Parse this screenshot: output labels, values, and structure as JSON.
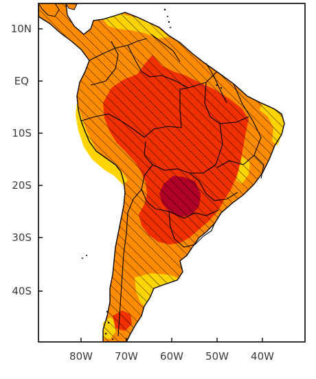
{
  "axes": {
    "latitude_labels": [
      "10N",
      "EQ",
      "10S",
      "20S",
      "30S",
      "40S"
    ],
    "longitude_labels": [
      "80W",
      "70W",
      "60W",
      "50W",
      "40W"
    ]
  },
  "legend_colors": {
    "light": "#FFD400",
    "medium": "#FF8C00",
    "strong": "#F03000",
    "extreme": "#B00028",
    "ocean": "#FFFFFF",
    "hatch": "#000000"
  }
}
